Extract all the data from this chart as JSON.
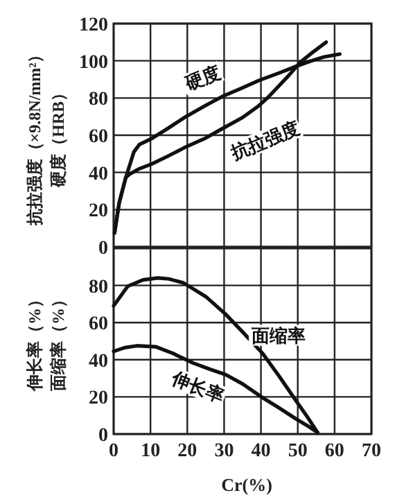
{
  "chart_data": [
    {
      "type": "line",
      "ylabel": "抗拉强度（×9.8N/mm²）硬度（HRB）",
      "xlim": [
        0,
        70
      ],
      "xticks": [
        0,
        10,
        20,
        30,
        40,
        50,
        60,
        70
      ],
      "ylim": [
        0,
        120
      ],
      "yticks": [
        0,
        20,
        40,
        60,
        80,
        100,
        120
      ],
      "grid": true,
      "tick_labels": "y",
      "series": [
        {
          "name": "硬度",
          "color": "#111111",
          "x": [
            0.25,
            1.5,
            3.3,
            5.5,
            7,
            10.5,
            15,
            19.3,
            25,
            29.4,
            35,
            39.4,
            45,
            49.5,
            53,
            57,
            61.4
          ],
          "values": [
            7.5,
            23.6,
            37.3,
            51,
            55,
            58.4,
            64,
            69.6,
            76,
            80.7,
            85.5,
            89.4,
            93.5,
            97,
            99.5,
            102,
            103.6
          ]
        },
        {
          "name": "抗拉强度",
          "color": "#111111",
          "x": [
            0.25,
            1.5,
            3.3,
            4.3,
            7,
            10.5,
            15,
            19.3,
            25,
            29.4,
            35,
            39.4,
            42,
            44.5,
            47.5,
            50.8,
            54,
            57.7
          ],
          "values": [
            7.5,
            23.6,
            37.3,
            39,
            42,
            44.7,
            49,
            53.4,
            58.5,
            63.4,
            69.5,
            75.8,
            80.5,
            85.7,
            92,
            99.4,
            104.5,
            110
          ]
        }
      ]
    },
    {
      "type": "line",
      "ylabel": "伸长率（%）面缩率（%）",
      "xlabel": "Cr(%)",
      "xlim": [
        0,
        70
      ],
      "xticks": [
        0,
        10,
        20,
        30,
        40,
        50,
        60,
        70
      ],
      "ylim": [
        0,
        100
      ],
      "yticks": [
        0,
        20,
        40,
        60,
        80,
        {
          "value": 100,
          "label": null
        }
      ],
      "grid": true,
      "series": [
        {
          "name": "面缩率",
          "color": "#111111",
          "x": [
            0,
            3.8,
            8,
            12,
            15,
            19,
            25,
            30.4,
            35,
            40.5,
            45,
            49.4,
            52.5,
            55.4
          ],
          "values": [
            69,
            79.5,
            83,
            84,
            83.5,
            81.3,
            74,
            64.5,
            55,
            43.3,
            31,
            18.3,
            9.5,
            0.8
          ]
        },
        {
          "name": "伸长率",
          "color": "#111111",
          "x": [
            0,
            3,
            6.3,
            11.4,
            16,
            21.5,
            26,
            30.4,
            35,
            40.5,
            45,
            49.4,
            53,
            55.4
          ],
          "values": [
            44.5,
            46.5,
            47.5,
            47,
            43.5,
            38.3,
            35,
            32,
            27,
            19.5,
            14,
            8.3,
            4,
            0.8
          ]
        }
      ]
    }
  ]
}
